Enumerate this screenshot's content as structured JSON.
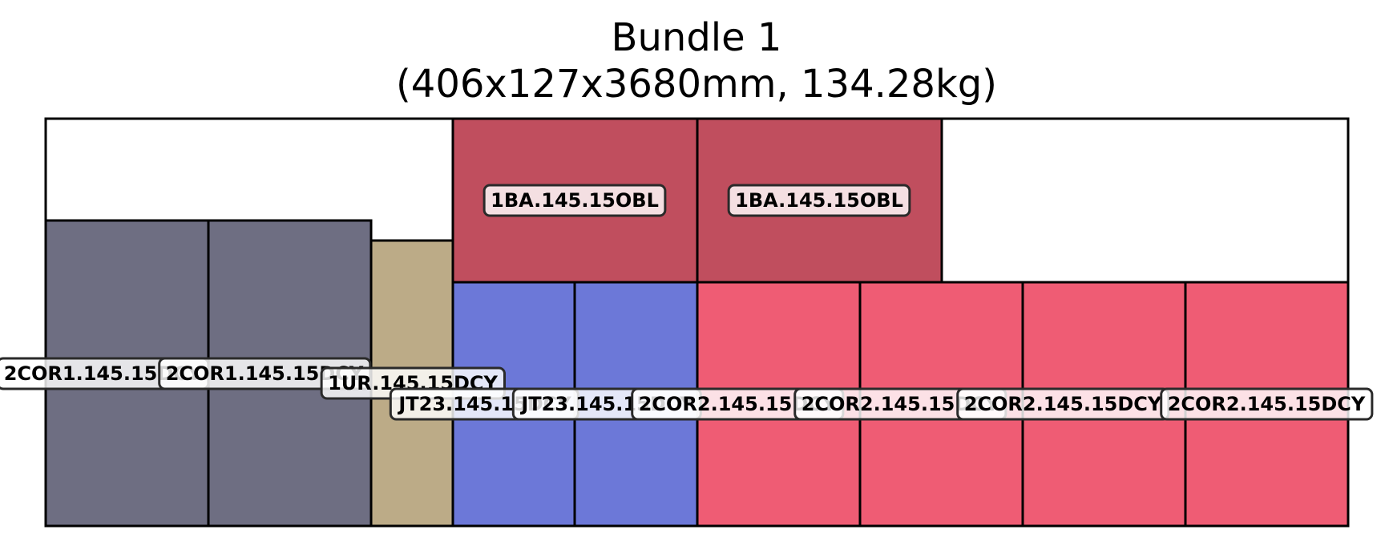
{
  "bundle": {
    "title_line1": "Bundle 1",
    "title_line2": "(406x127x3680mm, 134.28kg)"
  },
  "colors": {
    "2COR1": "#6e6e82",
    "1UR": "#bcab87",
    "1BA": "#c04e5e",
    "JT23": "#6c78d8",
    "2COR2": "#ef5c74",
    "outline": "#000000",
    "label_box": "#ffffff"
  },
  "pieces": [
    {
      "id": "p1",
      "label": "2COR1.145.15DCY",
      "group": "2COR1"
    },
    {
      "id": "p2",
      "label": "2COR1.145.15DCY",
      "group": "2COR1"
    },
    {
      "id": "p3",
      "label": "1UR.145.15DCY",
      "group": "1UR"
    },
    {
      "id": "p4",
      "label": "1BA.145.15OBL",
      "group": "1BA"
    },
    {
      "id": "p5",
      "label": "1BA.145.15OBL",
      "group": "1BA"
    },
    {
      "id": "p6",
      "label": "JT23.145.15DCY",
      "group": "JT23"
    },
    {
      "id": "p7",
      "label": "JT23.145.15DCY",
      "group": "JT23"
    },
    {
      "id": "p8",
      "label": "2COR2.145.15DCY",
      "group": "2COR2"
    },
    {
      "id": "p9",
      "label": "2COR2.145.15DCY",
      "group": "2COR2"
    },
    {
      "id": "p10",
      "label": "2COR2.145.15DCY",
      "group": "2COR2"
    },
    {
      "id": "p11",
      "label": "2COR2.145.15DCY",
      "group": "2COR2"
    }
  ]
}
